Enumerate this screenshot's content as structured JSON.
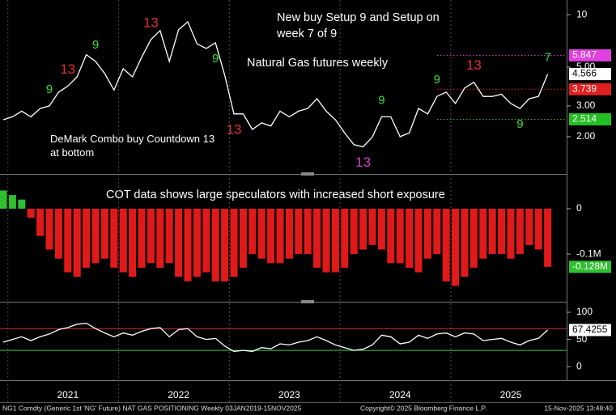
{
  "chart_data": [
    {
      "type": "line",
      "log_scale": true,
      "color": "#ffffff",
      "categories": [
        null,
        null,
        null,
        null,
        null,
        null,
        null,
        "2021",
        null,
        null,
        null,
        null,
        null,
        null,
        null,
        null,
        null,
        null,
        null,
        "2022",
        null,
        null,
        null,
        null,
        null,
        null,
        null,
        null,
        null,
        null,
        null,
        "2023",
        null,
        null,
        null,
        null,
        null,
        null,
        null,
        null,
        null,
        null,
        null,
        "2024",
        null,
        null,
        null,
        null,
        null,
        null,
        null,
        null,
        null,
        null,
        null,
        "2025",
        null,
        null,
        null,
        null
      ],
      "values": [
        2.5,
        2.6,
        2.8,
        2.6,
        2.9,
        3.0,
        3.6,
        3.9,
        4.4,
        5.9,
        5.4,
        4.6,
        3.7,
        4.9,
        4.4,
        5.7,
        7.2,
        8.1,
        5.4,
        8.2,
        9.1,
        6.8,
        6.4,
        6.9,
        4.5,
        2.7,
        2.7,
        2.2,
        2.4,
        2.3,
        2.8,
        2.6,
        2.8,
        2.9,
        3.3,
        2.8,
        2.5,
        2.1,
        1.8,
        1.75,
        1.99,
        2.6,
        2.6,
        2.0,
        2.1,
        2.9,
        2.7,
        3.4,
        3.6,
        3.1,
        3.8,
        4.1,
        3.4,
        3.4,
        3.5,
        3.1,
        2.9,
        3.3,
        3.4,
        4.566
      ],
      "ylim": [
        1.25,
        11.5
      ],
      "yticks": [
        {
          "value": 2,
          "label": "2.00"
        },
        {
          "value": 3,
          "label": "3.00"
        },
        {
          "value": 5,
          "label": "5.00"
        },
        10
      ],
      "levels": [
        {
          "value": 5.847,
          "color": "#e040e0"
        },
        {
          "value": 3.739,
          "color": "#e02020"
        },
        {
          "value": 2.514,
          "color": "#22c022"
        }
      ],
      "td_marks": [
        {
          "index": 7,
          "label": "13",
          "color": "#e03030",
          "pos": "above"
        },
        {
          "index": 16,
          "label": "13",
          "color": "#e03030",
          "pos": "above"
        },
        {
          "index": 25,
          "label": "13",
          "color": "#e03030",
          "pos": "below"
        },
        {
          "index": 39,
          "label": "13",
          "color": "#d040d0",
          "pos": "below"
        },
        {
          "index": 51,
          "label": "13",
          "color": "#e03030",
          "pos": "above"
        },
        {
          "index": 5,
          "label": "9",
          "color": "#3ddc3d",
          "pos": "above"
        },
        {
          "index": 10,
          "label": "9",
          "color": "#3ddc3d",
          "pos": "above"
        },
        {
          "index": 23,
          "label": "9",
          "color": "#3ddc3d",
          "pos": "below"
        },
        {
          "index": 41,
          "label": "9",
          "color": "#3ddc3d",
          "pos": "above"
        },
        {
          "index": 47,
          "label": "9",
          "color": "#3ddc3d",
          "pos": "above"
        },
        {
          "index": 56,
          "label": "9",
          "color": "#3ddc3d",
          "pos": "below"
        },
        {
          "index": 59,
          "label": "7",
          "color": "#3ddc3d",
          "pos": "above"
        }
      ],
      "annotations": [
        {
          "lines": [
            "New buy Setup 9 and Setup on",
            "week 7 of 9"
          ]
        },
        {
          "lines": [
            "Natural Gas futures weekly"
          ]
        },
        {
          "lines": [
            "DeMark Combo buy Countdown 13",
            "at bottom"
          ]
        }
      ]
    },
    {
      "type": "bar",
      "pos_color": "#2fbf2f",
      "neg_color": "#e01a1a",
      "values": [
        40000,
        30000,
        20000,
        -20000,
        -60000,
        -90000,
        -110000,
        -140000,
        -150000,
        -130000,
        -120000,
        -110000,
        -130000,
        -140000,
        -150000,
        -130000,
        -120000,
        -130000,
        -120000,
        -150000,
        -160000,
        -150000,
        -140000,
        -160000,
        -160000,
        -150000,
        -130000,
        -100000,
        -110000,
        -120000,
        -120000,
        -110000,
        -100000,
        -100000,
        -130000,
        -140000,
        -140000,
        -130000,
        -100000,
        -90000,
        -80000,
        -90000,
        -120000,
        -120000,
        -130000,
        -140000,
        -110000,
        -100000,
        -160000,
        -170000,
        -150000,
        -130000,
        -110000,
        -100000,
        -100000,
        -110000,
        -100000,
        -80000,
        -90000,
        -128000
      ],
      "last_label": "-0.128M",
      "ylim": [
        -196000,
        64000
      ],
      "yticks": [
        {
          "value": -100000,
          "label": "-0.1M"
        },
        0
      ],
      "annotations": [
        {
          "lines": [
            "COT data shows large speculators with increased short exposure"
          ]
        }
      ]
    },
    {
      "type": "line",
      "color": "#ffffff",
      "values": [
        45,
        50,
        55,
        48,
        55,
        60,
        68,
        72,
        78,
        80,
        70,
        62,
        55,
        62,
        58,
        65,
        70,
        72,
        55,
        68,
        70,
        55,
        50,
        52,
        38,
        28,
        30,
        28,
        35,
        33,
        42,
        40,
        45,
        48,
        55,
        48,
        40,
        35,
        30,
        32,
        40,
        58,
        55,
        42,
        45,
        58,
        52,
        60,
        62,
        55,
        62,
        60,
        48,
        50,
        52,
        45,
        40,
        48,
        52,
        67.4255
      ],
      "ylim": [
        -25,
        112
      ],
      "yticks": [
        0,
        50,
        100
      ],
      "hlines": [
        {
          "value": 70,
          "color": "#d03030"
        },
        {
          "value": 30,
          "color": "#2ecc40"
        }
      ]
    }
  ],
  "footer": {
    "left": "NG1 Comdty (Generic 1st 'NG' Future) NAT GAS POSITIONING Weekly 03JAN2019-15NOV2025",
    "middle": "Copyright© 2025 Bloomberg Finance L.P.",
    "right": "15-Nov-2025 13:48:40"
  }
}
